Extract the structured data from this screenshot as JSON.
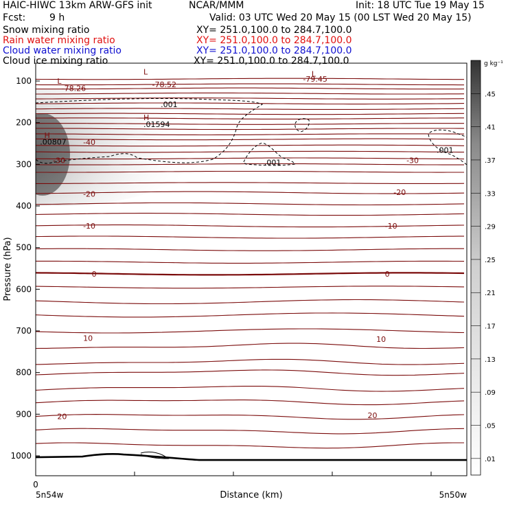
{
  "header": {
    "title_left": "HAIC-HIWC 13km ARW-GFS init",
    "title_center": "NCAR/MMM",
    "init": "Init: 18 UTC Tue 19 May 15",
    "fcst_label": "Fcst:",
    "fcst_value": "9 h",
    "valid": "Valid: 03 UTC Wed 20 May 15 (00 LST Wed 20 May 15)"
  },
  "fields": [
    {
      "name": "Snow mixing ratio",
      "xy": "XY= 251.0,100.0 to 284.7,100.0",
      "color": "#000000"
    },
    {
      "name": "Rain water mixing ratio",
      "xy": "XY= 251.0,100.0 to 284.7,100.0",
      "color": "#e01010"
    },
    {
      "name": "Cloud water mixing ratio",
      "xy": "XY= 251.0,100.0 to 284.7,100.0",
      "color": "#1010d0"
    },
    {
      "name": "Cloud ice mixing ratio",
      "xy": "XY= 251.0,100.0 to 284.7,100.0",
      "color": "#000000"
    }
  ],
  "colors": {
    "temperature": "#7a0a0a",
    "ground": "#000000",
    "shade": "#3a3a3a",
    "dashed": "#000000"
  },
  "chart_data": {
    "type": "contour",
    "xlabel": "Distance (km)",
    "ylabel": "Pressure (hPa)",
    "x_ticks": [
      "0"
    ],
    "x_end_labels": [
      "5n54w",
      "5n50w"
    ],
    "y_ticks": [
      100,
      200,
      300,
      400,
      500,
      600,
      700,
      800,
      900,
      1000
    ],
    "ylim": [
      1050,
      50
    ],
    "colorbar": {
      "unit": "g kg⁻¹",
      "levels": [
        ".01",
        ".05",
        ".09",
        ".13",
        ".17",
        ".21",
        ".25",
        ".29",
        ".33",
        ".37",
        ".41",
        ".45"
      ]
    },
    "temperature_labels": [
      {
        "text": "-78.52",
        "x": 0.27,
        "p": 108
      },
      {
        "text": "-78.26",
        "x": 0.06,
        "p": 117
      },
      {
        "text": "-79.45",
        "x": 0.62,
        "p": 95
      },
      {
        "text": "-40",
        "x": 0.11,
        "p": 247
      },
      {
        "text": "-30",
        "x": 0.04,
        "p": 290
      },
      {
        "text": "-30",
        "x": 0.86,
        "p": 290
      },
      {
        "text": "-20",
        "x": 0.11,
        "p": 371
      },
      {
        "text": "-20",
        "x": 0.83,
        "p": 367
      },
      {
        "text": "-10",
        "x": 0.11,
        "p": 448
      },
      {
        "text": "-10",
        "x": 0.81,
        "p": 448
      },
      {
        "text": "0",
        "x": 0.13,
        "p": 563
      },
      {
        "text": "0",
        "x": 0.81,
        "p": 563
      },
      {
        "text": "10",
        "x": 0.11,
        "p": 717
      },
      {
        "text": "10",
        "x": 0.79,
        "p": 720
      },
      {
        "text": "20",
        "x": 0.05,
        "p": 905
      },
      {
        "text": "20",
        "x": 0.77,
        "p": 903
      }
    ],
    "max_min_labels": [
      {
        "text": "L",
        "x": 0.25,
        "p": 78
      },
      {
        "text": "L",
        "x": 0.05,
        "p": 100
      },
      {
        "text": "L",
        "x": 0.64,
        "p": 83
      },
      {
        "text": "H",
        "x": 0.25,
        "p": 187
      },
      {
        "text": "H",
        "x": 0.02,
        "p": 230
      }
    ],
    "value_labels": [
      {
        "text": ".001",
        "x": 0.29,
        "p": 156
      },
      {
        "text": ".01594",
        "x": 0.25,
        "p": 204
      },
      {
        "text": ".00807",
        "x": 0.01,
        "p": 246
      },
      {
        "text": ".001",
        "x": 0.53,
        "p": 295
      },
      {
        "text": ".001",
        "x": 0.93,
        "p": 266
      }
    ],
    "temperature_isotherm_pressures": [
      95,
      108,
      118,
      130,
      142,
      154,
      167,
      179,
      190,
      203,
      215,
      228,
      240,
      255,
      270,
      286,
      300,
      318,
      345,
      368,
      395,
      420,
      448,
      475,
      505,
      535,
      563,
      595,
      630,
      662,
      700,
      737,
      775,
      800,
      838,
      870,
      905,
      940,
      975
    ],
    "ground_pressure": 1010
  }
}
